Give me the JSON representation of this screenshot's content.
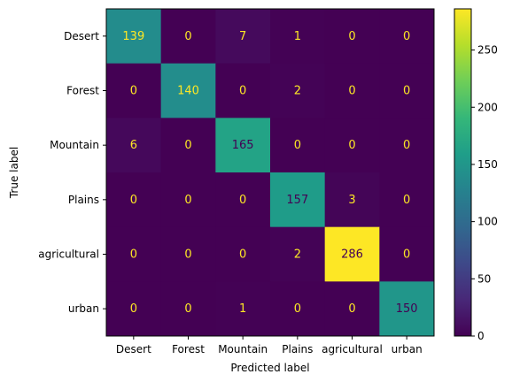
{
  "chart_data": {
    "type": "heatmap",
    "xlabel": "Predicted label",
    "ylabel": "True label",
    "x_categories": [
      "Desert",
      "Forest",
      "Mountain",
      "Plains",
      "agricultural",
      "urban"
    ],
    "y_categories": [
      "Desert",
      "Forest",
      "Mountain",
      "Plains",
      "agricultural",
      "urban"
    ],
    "values": [
      [
        139,
        0,
        7,
        1,
        0,
        0
      ],
      [
        0,
        140,
        0,
        2,
        0,
        0
      ],
      [
        6,
        0,
        165,
        0,
        0,
        0
      ],
      [
        0,
        0,
        0,
        157,
        3,
        0
      ],
      [
        0,
        0,
        0,
        2,
        286,
        0
      ],
      [
        0,
        0,
        1,
        0,
        0,
        150
      ]
    ],
    "colormap": "viridis",
    "vmin": 0,
    "vmax": 286,
    "colorbar_ticks": [
      0,
      50,
      100,
      150,
      200,
      250
    ],
    "text_color_light": "#fde725",
    "text_color_dark": "#440154"
  }
}
